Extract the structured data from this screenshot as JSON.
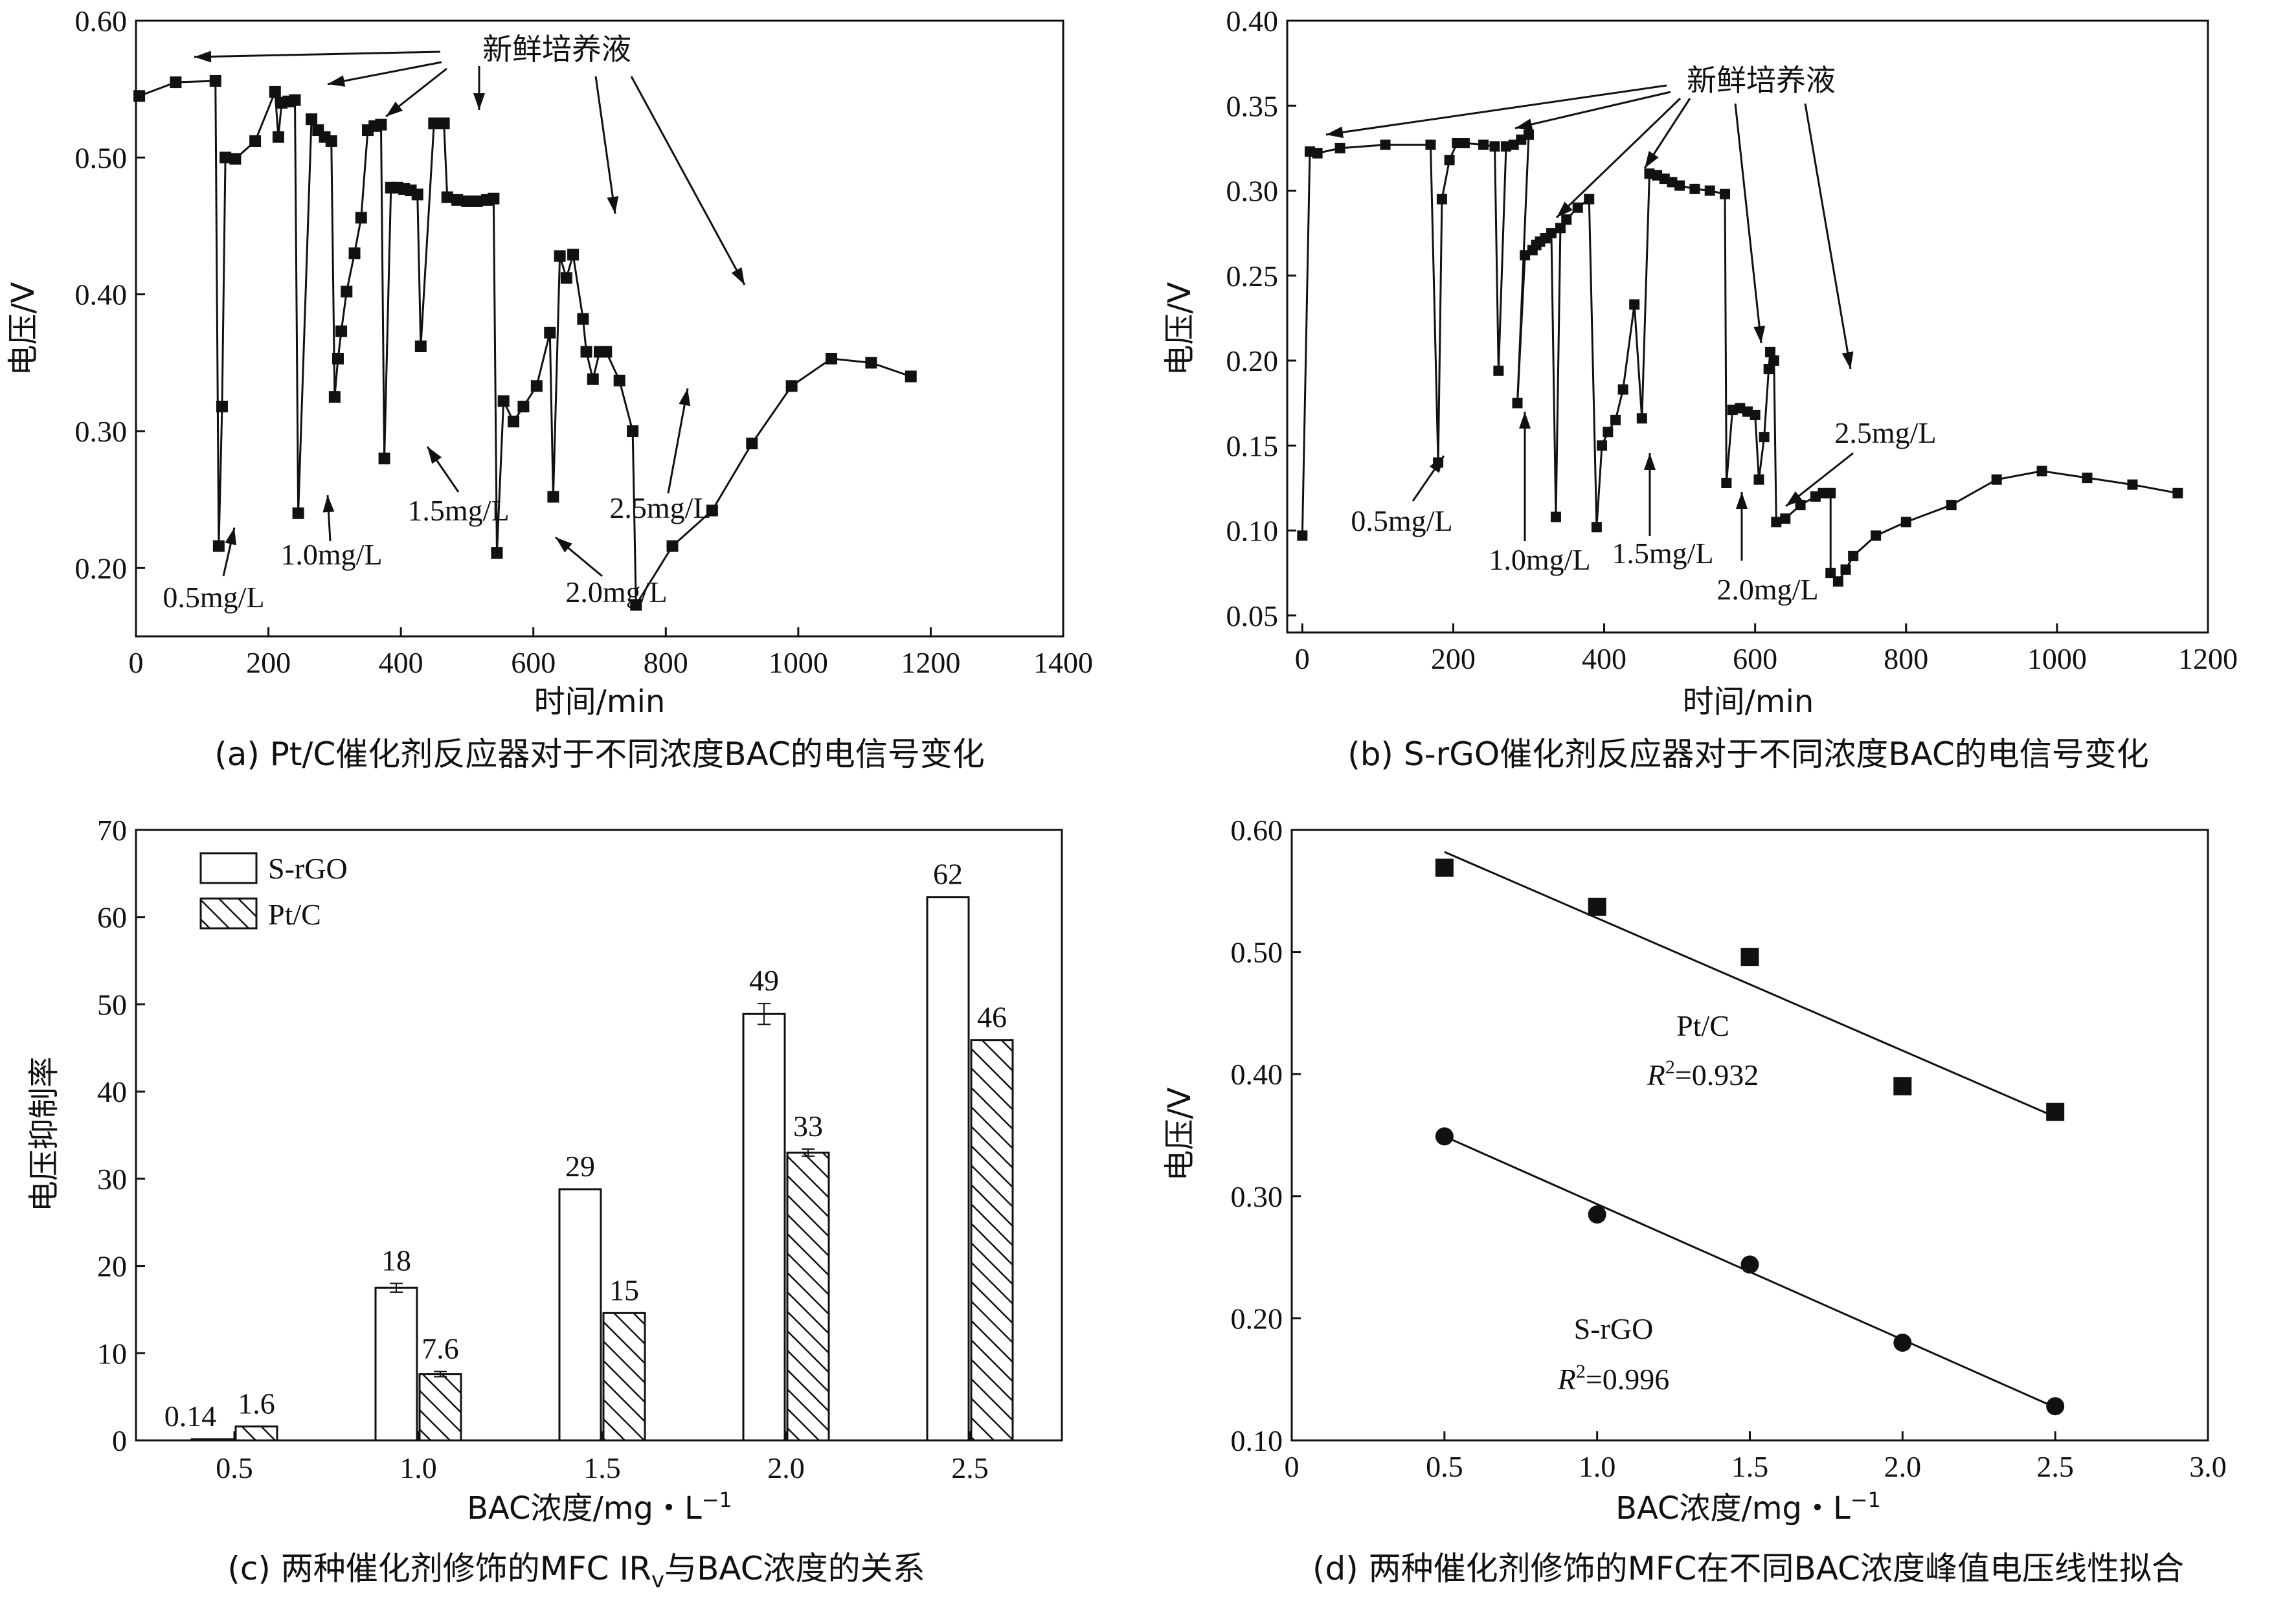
{
  "chart_data": [
    {
      "id": "a",
      "type": "line",
      "caption": "(a) Pt/C催化剂反应器对于不同浓度BAC的电信号变化",
      "xlabel": "时间/min",
      "ylabel": "电压/V",
      "xlim": [
        0,
        1400
      ],
      "ylim": [
        0.15,
        0.6
      ],
      "xticks": [
        "0",
        "200",
        "400",
        "600",
        "800",
        "1000",
        "1200",
        "1400"
      ],
      "xtick_values": [
        0,
        200,
        400,
        600,
        800,
        1000,
        1200,
        1400
      ],
      "yticks": [
        "0.20",
        "0.30",
        "0.40",
        "0.50",
        "0.60"
      ],
      "ytick_values": [
        0.2,
        0.3,
        0.4,
        0.5,
        0.6
      ],
      "series": [
        {
          "name": "Pt/C",
          "points": [
            [
              5,
              0.545
            ],
            [
              60,
              0.555
            ],
            [
              120,
              0.556
            ],
            [
              125,
              0.216
            ],
            [
              130,
              0.318
            ],
            [
              135,
              0.5
            ],
            [
              150,
              0.499
            ],
            [
              180,
              0.512
            ],
            [
              210,
              0.548
            ],
            [
              215,
              0.515
            ],
            [
              220,
              0.54
            ],
            [
              230,
              0.541
            ],
            [
              240,
              0.542
            ],
            [
              245,
              0.24
            ],
            [
              265,
              0.528
            ],
            [
              275,
              0.52
            ],
            [
              285,
              0.515
            ],
            [
              295,
              0.512
            ],
            [
              300,
              0.325
            ],
            [
              305,
              0.353
            ],
            [
              310,
              0.373
            ],
            [
              318,
              0.402
            ],
            [
              330,
              0.43
            ],
            [
              340,
              0.456
            ],
            [
              350,
              0.52
            ],
            [
              360,
              0.523
            ],
            [
              370,
              0.524
            ],
            [
              375,
              0.28
            ],
            [
              385,
              0.478
            ],
            [
              395,
              0.478
            ],
            [
              405,
              0.477
            ],
            [
              415,
              0.476
            ],
            [
              425,
              0.473
            ],
            [
              430,
              0.362
            ],
            [
              450,
              0.525
            ],
            [
              465,
              0.525
            ],
            [
              470,
              0.471
            ],
            [
              485,
              0.469
            ],
            [
              500,
              0.468
            ],
            [
              515,
              0.468
            ],
            [
              530,
              0.469
            ],
            [
              540,
              0.47
            ],
            [
              545,
              0.211
            ],
            [
              555,
              0.322
            ],
            [
              570,
              0.307
            ],
            [
              585,
              0.318
            ],
            [
              605,
              0.333
            ],
            [
              625,
              0.372
            ],
            [
              630,
              0.252
            ],
            [
              640,
              0.428
            ],
            [
              650,
              0.412
            ],
            [
              660,
              0.429
            ],
            [
              675,
              0.382
            ],
            [
              680,
              0.358
            ],
            [
              690,
              0.338
            ],
            [
              700,
              0.358
            ],
            [
              710,
              0.358
            ],
            [
              730,
              0.337
            ],
            [
              750,
              0.3
            ],
            [
              755,
              0.173
            ],
            [
              810,
              0.216
            ],
            [
              870,
              0.242
            ],
            [
              930,
              0.291
            ],
            [
              990,
              0.333
            ],
            [
              1050,
              0.353
            ],
            [
              1110,
              0.35
            ],
            [
              1170,
              0.34
            ]
          ]
        }
      ],
      "annotations": {
        "fresh_label": "新鲜培养液",
        "concentrations": [
          "0.5mg/L",
          "1.0mg/L",
          "1.5mg/L",
          "2.0mg/L",
          "2.5mg/L"
        ]
      }
    },
    {
      "id": "b",
      "type": "line",
      "caption": "(b) S-rGO催化剂反应器对于不同浓度BAC的电信号变化",
      "xlabel": "时间/min",
      "ylabel": "电压/V",
      "xlim": [
        -20,
        1200
      ],
      "ylim": [
        0.04,
        0.4
      ],
      "xticks": [
        "0",
        "200",
        "400",
        "600",
        "800",
        "1000",
        "1200"
      ],
      "xtick_values": [
        0,
        200,
        400,
        600,
        800,
        1000,
        1200
      ],
      "yticks": [
        "0.05",
        "0.10",
        "0.15",
        "0.20",
        "0.25",
        "0.30",
        "0.35",
        "0.40"
      ],
      "ytick_values": [
        0.05,
        0.1,
        0.15,
        0.2,
        0.25,
        0.3,
        0.35,
        0.4
      ],
      "series": [
        {
          "name": "S-rGO",
          "points": [
            [
              0,
              0.097
            ],
            [
              10,
              0.323
            ],
            [
              20,
              0.322
            ],
            [
              50,
              0.325
            ],
            [
              110,
              0.327
            ],
            [
              170,
              0.327
            ],
            [
              180,
              0.14
            ],
            [
              185,
              0.295
            ],
            [
              195,
              0.318
            ],
            [
              205,
              0.328
            ],
            [
              215,
              0.328
            ],
            [
              240,
              0.327
            ],
            [
              255,
              0.326
            ],
            [
              260,
              0.194
            ],
            [
              270,
              0.326
            ],
            [
              280,
              0.327
            ],
            [
              290,
              0.33
            ],
            [
              300,
              0.333
            ],
            [
              285,
              0.175
            ],
            [
              295,
              0.262
            ],
            [
              305,
              0.265
            ],
            [
              310,
              0.268
            ],
            [
              315,
              0.27
            ],
            [
              322,
              0.272
            ],
            [
              330,
              0.275
            ],
            [
              336,
              0.108
            ],
            [
              342,
              0.278
            ],
            [
              350,
              0.283
            ],
            [
              365,
              0.29
            ],
            [
              380,
              0.295
            ],
            [
              390,
              0.102
            ],
            [
              397,
              0.15
            ],
            [
              405,
              0.158
            ],
            [
              415,
              0.165
            ],
            [
              425,
              0.183
            ],
            [
              440,
              0.233
            ],
            [
              450,
              0.166
            ],
            [
              460,
              0.31
            ],
            [
              470,
              0.309
            ],
            [
              480,
              0.307
            ],
            [
              490,
              0.305
            ],
            [
              500,
              0.303
            ],
            [
              520,
              0.301
            ],
            [
              540,
              0.3
            ],
            [
              560,
              0.298
            ],
            [
              562,
              0.128
            ],
            [
              570,
              0.171
            ],
            [
              580,
              0.172
            ],
            [
              590,
              0.17
            ],
            [
              600,
              0.168
            ],
            [
              605,
              0.13
            ],
            [
              612,
              0.155
            ],
            [
              618,
              0.195
            ],
            [
              620,
              0.205
            ],
            [
              625,
              0.2
            ],
            [
              628,
              0.105
            ],
            [
              640,
              0.107
            ],
            [
              660,
              0.115
            ],
            [
              680,
              0.12
            ],
            [
              690,
              0.122
            ],
            [
              700,
              0.122
            ],
            [
              700,
              0.075
            ],
            [
              710,
              0.07
            ],
            [
              720,
              0.077
            ],
            [
              730,
              0.085
            ],
            [
              760,
              0.097
            ],
            [
              800,
              0.105
            ],
            [
              860,
              0.115
            ],
            [
              920,
              0.13
            ],
            [
              980,
              0.135
            ],
            [
              1040,
              0.131
            ],
            [
              1100,
              0.127
            ],
            [
              1160,
              0.122
            ]
          ]
        }
      ],
      "annotations": {
        "fresh_label": "新鲜培养液",
        "concentrations": [
          "0.5mg/L",
          "1.0mg/L",
          "1.5mg/L",
          "2.0mg/L",
          "2.5mg/L"
        ]
      }
    },
    {
      "id": "c",
      "type": "bar",
      "caption_prefix": "(c) 两种催化剂修饰的MFC IR",
      "caption_sub": "v",
      "caption_suffix": "与BAC浓度的关系",
      "xlabel": "BAC浓度/mg・L",
      "xlabel_sup": "−1",
      "ylabel": "电压抑制率",
      "ylim": [
        0,
        70
      ],
      "yticks": [
        "0",
        "10",
        "20",
        "30",
        "40",
        "50",
        "60",
        "70"
      ],
      "ytick_values": [
        0,
        10,
        20,
        30,
        40,
        50,
        60,
        70
      ],
      "categories": [
        "0.5",
        "1.0",
        "1.5",
        "2.0",
        "2.5"
      ],
      "series": [
        {
          "name": "S-rGO",
          "values": [
            0.14,
            17.5,
            28.8,
            48.9,
            62.3
          ],
          "labels": [
            "0.14",
            "18",
            "29",
            "49",
            "62"
          ],
          "errors": [
            0,
            0.5,
            0,
            1.2,
            0
          ]
        },
        {
          "name": "Pt/C",
          "values": [
            1.6,
            7.6,
            14.6,
            33.0,
            45.9
          ],
          "labels": [
            "1.6",
            "7.6",
            "15",
            "33",
            "46"
          ],
          "errors": [
            0,
            0.3,
            0,
            0.4,
            0
          ]
        }
      ]
    },
    {
      "id": "d",
      "type": "scatter",
      "caption": "(d) 两种催化剂修饰的MFC在不同BAC浓度峰值电压线性拟合",
      "xlabel": "BAC浓度/mg・L",
      "xlabel_sup": "−1",
      "ylabel": "电压/V",
      "xlim": [
        0,
        3.0
      ],
      "ylim": [
        0.1,
        0.6
      ],
      "xticks": [
        "0",
        "0.5",
        "1.0",
        "1.5",
        "2.0",
        "2.5",
        "3.0"
      ],
      "xtick_values": [
        0,
        0.5,
        1.0,
        1.5,
        2.0,
        2.5,
        3.0
      ],
      "yticks": [
        "0.10",
        "0.20",
        "0.30",
        "0.40",
        "0.50",
        "0.60"
      ],
      "ytick_values": [
        0.1,
        0.2,
        0.3,
        0.4,
        0.5,
        0.6
      ],
      "series": [
        {
          "name": "Pt/C",
          "marker": "square",
          "x": [
            0.5,
            1.0,
            1.5,
            2.0,
            2.5
          ],
          "y": [
            0.569,
            0.537,
            0.496,
            0.39,
            0.369
          ],
          "fit": [
            [
              0.5,
              0.582
            ],
            [
              2.5,
              0.365
            ]
          ],
          "label": "Pt/C",
          "r2": "=0.932"
        },
        {
          "name": "S-rGO",
          "marker": "circle",
          "x": [
            0.5,
            1.0,
            1.5,
            2.0,
            2.5
          ],
          "y": [
            0.349,
            0.285,
            0.244,
            0.18,
            0.128
          ],
          "fit": [
            [
              0.5,
              0.349
            ],
            [
              2.5,
              0.127
            ]
          ],
          "label": "S-rGO",
          "r2": "=0.996"
        }
      ]
    }
  ]
}
